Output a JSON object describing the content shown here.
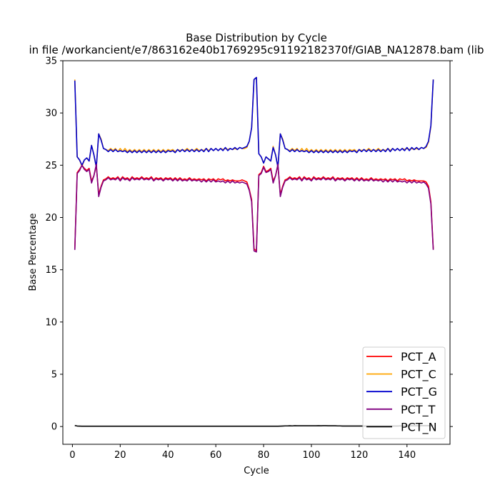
{
  "chart_data": {
    "type": "line",
    "title": "Base Distribution by Cycle",
    "subtitle": "in file /workancient/e7/863162e40b1769295c91192182370f/GIAB_NA12878.bam (lib",
    "xlabel": "Cycle",
    "ylabel": "Base Percentage",
    "xlim": [
      -4,
      158
    ],
    "ylim": [
      -1.7,
      35
    ],
    "xticks": [
      0,
      20,
      40,
      60,
      80,
      100,
      120,
      140
    ],
    "yticks": [
      0,
      5,
      10,
      15,
      20,
      25,
      30,
      35
    ],
    "grid": false,
    "legend_position": "lower-right",
    "x": [
      1,
      2,
      3,
      4,
      5,
      6,
      7,
      8,
      9,
      10,
      11,
      12,
      13,
      14,
      15,
      16,
      17,
      18,
      19,
      20,
      21,
      22,
      23,
      24,
      25,
      26,
      27,
      28,
      29,
      30,
      31,
      32,
      33,
      34,
      35,
      36,
      37,
      38,
      39,
      40,
      41,
      42,
      43,
      44,
      45,
      46,
      47,
      48,
      49,
      50,
      51,
      52,
      53,
      54,
      55,
      56,
      57,
      58,
      59,
      60,
      61,
      62,
      63,
      64,
      65,
      66,
      67,
      68,
      69,
      70,
      71,
      72,
      73,
      74,
      75,
      76,
      77,
      78,
      79,
      80,
      81,
      82,
      83,
      84,
      85,
      86,
      87,
      88,
      89,
      90,
      91,
      92,
      93,
      94,
      95,
      96,
      97,
      98,
      99,
      100,
      101,
      102,
      103,
      104,
      105,
      106,
      107,
      108,
      109,
      110,
      111,
      112,
      113,
      114,
      115,
      116,
      117,
      118,
      119,
      120,
      121,
      122,
      123,
      124,
      125,
      126,
      127,
      128,
      129,
      130,
      131,
      132,
      133,
      134,
      135,
      136,
      137,
      138,
      139,
      140,
      141,
      142,
      143,
      144,
      145,
      146,
      147,
      148,
      149,
      150,
      151
    ],
    "series": [
      {
        "name": "PCT_A",
        "color": "#ff0000",
        "values": [
          17.0,
          24.3,
          24.6,
          25.0,
          24.7,
          24.5,
          24.7,
          23.5,
          24.0,
          25.0,
          22.2,
          23.0,
          23.6,
          23.7,
          23.9,
          23.7,
          23.8,
          23.7,
          23.9,
          23.6,
          23.9,
          23.7,
          23.8,
          23.6,
          23.9,
          23.7,
          23.8,
          23.7,
          23.9,
          23.7,
          23.8,
          23.7,
          23.9,
          23.6,
          23.8,
          23.7,
          23.8,
          23.6,
          23.8,
          23.7,
          23.8,
          23.6,
          23.8,
          23.6,
          23.8,
          23.6,
          23.7,
          23.6,
          23.8,
          23.6,
          23.7,
          23.6,
          23.7,
          23.6,
          23.7,
          23.5,
          23.7,
          23.6,
          23.7,
          23.5,
          23.7,
          23.6,
          23.7,
          23.5,
          23.6,
          23.5,
          23.6,
          23.5,
          23.5,
          23.5,
          23.6,
          23.5,
          23.4,
          22.7,
          21.7,
          17.0,
          16.8,
          24.1,
          24.3,
          24.9,
          24.4,
          24.5,
          24.7,
          23.5,
          24.0,
          25.0,
          22.2,
          23.0,
          23.6,
          23.7,
          23.9,
          23.7,
          23.8,
          23.7,
          23.9,
          23.6,
          23.9,
          23.7,
          23.8,
          23.6,
          23.9,
          23.7,
          23.8,
          23.7,
          23.9,
          23.7,
          23.8,
          23.7,
          23.9,
          23.6,
          23.8,
          23.7,
          23.8,
          23.6,
          23.8,
          23.7,
          23.8,
          23.6,
          23.8,
          23.6,
          23.8,
          23.6,
          23.7,
          23.6,
          23.8,
          23.6,
          23.7,
          23.6,
          23.7,
          23.6,
          23.7,
          23.5,
          23.7,
          23.6,
          23.7,
          23.5,
          23.7,
          23.6,
          23.7,
          23.5,
          23.6,
          23.5,
          23.6,
          23.5,
          23.5,
          23.5,
          23.5,
          23.4,
          23.0,
          21.5,
          17.0
        ]
      },
      {
        "name": "PCT_C",
        "color": "#ffa500",
        "values": [
          33.2,
          25.8,
          25.5,
          24.9,
          25.5,
          25.7,
          25.4,
          26.9,
          26.0,
          24.8,
          28.0,
          27.5,
          26.6,
          26.5,
          26.4,
          26.6,
          26.4,
          26.6,
          26.3,
          26.6,
          26.3,
          26.6,
          26.3,
          26.5,
          26.3,
          26.5,
          26.3,
          26.5,
          26.3,
          26.5,
          26.3,
          26.5,
          26.3,
          26.5,
          26.3,
          26.5,
          26.3,
          26.5,
          26.3,
          26.5,
          26.4,
          26.5,
          26.3,
          26.5,
          26.4,
          26.5,
          26.4,
          26.6,
          26.4,
          26.5,
          26.4,
          26.6,
          26.4,
          26.5,
          26.4,
          26.6,
          26.4,
          26.6,
          26.4,
          26.6,
          26.4,
          26.6,
          26.5,
          26.6,
          26.5,
          26.6,
          26.5,
          26.6,
          26.5,
          26.7,
          26.6,
          26.6,
          26.7,
          27.3,
          28.6,
          33.2,
          33.4,
          26.1,
          25.8,
          25.2,
          25.8,
          25.6,
          25.4,
          26.8,
          26.0,
          24.8,
          28.0,
          27.5,
          26.6,
          26.5,
          26.4,
          26.6,
          26.4,
          26.6,
          26.3,
          26.6,
          26.3,
          26.6,
          26.3,
          26.5,
          26.3,
          26.5,
          26.3,
          26.5,
          26.3,
          26.5,
          26.3,
          26.5,
          26.3,
          26.5,
          26.3,
          26.5,
          26.3,
          26.5,
          26.3,
          26.5,
          26.4,
          26.5,
          26.3,
          26.5,
          26.4,
          26.5,
          26.4,
          26.6,
          26.4,
          26.5,
          26.4,
          26.6,
          26.4,
          26.5,
          26.4,
          26.6,
          26.4,
          26.6,
          26.4,
          26.6,
          26.4,
          26.6,
          26.5,
          26.6,
          26.5,
          26.6,
          26.5,
          26.6,
          26.5,
          26.7,
          26.6,
          26.7,
          27.2,
          28.7,
          33.2
        ]
      },
      {
        "name": "PCT_G",
        "color": "#0000cd",
        "values": [
          33.1,
          25.8,
          25.5,
          25.0,
          25.5,
          25.7,
          25.4,
          26.9,
          26.0,
          24.8,
          28.0,
          27.4,
          26.6,
          26.5,
          26.3,
          26.5,
          26.3,
          26.5,
          26.3,
          26.4,
          26.3,
          26.4,
          26.2,
          26.4,
          26.2,
          26.4,
          26.2,
          26.4,
          26.2,
          26.4,
          26.2,
          26.4,
          26.2,
          26.4,
          26.2,
          26.4,
          26.2,
          26.4,
          26.2,
          26.4,
          26.3,
          26.4,
          26.2,
          26.5,
          26.3,
          26.5,
          26.3,
          26.5,
          26.3,
          26.5,
          26.3,
          26.5,
          26.3,
          26.5,
          26.3,
          26.6,
          26.3,
          26.6,
          26.4,
          26.6,
          26.4,
          26.6,
          26.4,
          26.7,
          26.4,
          26.6,
          26.5,
          26.7,
          26.5,
          26.7,
          26.6,
          26.7,
          26.8,
          27.3,
          28.6,
          33.2,
          33.4,
          26.1,
          25.8,
          25.2,
          25.8,
          25.6,
          25.4,
          26.7,
          26.0,
          24.8,
          28.0,
          27.4,
          26.6,
          26.5,
          26.3,
          26.5,
          26.3,
          26.5,
          26.3,
          26.4,
          26.3,
          26.4,
          26.2,
          26.4,
          26.2,
          26.4,
          26.2,
          26.4,
          26.2,
          26.4,
          26.2,
          26.4,
          26.2,
          26.4,
          26.2,
          26.4,
          26.2,
          26.4,
          26.2,
          26.4,
          26.3,
          26.4,
          26.2,
          26.5,
          26.3,
          26.5,
          26.3,
          26.5,
          26.3,
          26.5,
          26.3,
          26.5,
          26.3,
          26.5,
          26.3,
          26.6,
          26.3,
          26.6,
          26.4,
          26.6,
          26.4,
          26.6,
          26.4,
          26.7,
          26.4,
          26.7,
          26.5,
          26.7,
          26.5,
          26.7,
          26.6,
          26.8,
          27.3,
          28.8,
          33.2
        ]
      },
      {
        "name": "PCT_T",
        "color": "#800080",
        "values": [
          16.9,
          24.2,
          24.5,
          25.0,
          24.6,
          24.4,
          24.6,
          23.3,
          24.0,
          25.1,
          22.0,
          22.9,
          23.5,
          23.6,
          23.8,
          23.6,
          23.7,
          23.6,
          23.8,
          23.5,
          23.8,
          23.6,
          23.7,
          23.5,
          23.8,
          23.6,
          23.7,
          23.6,
          23.8,
          23.6,
          23.7,
          23.6,
          23.8,
          23.5,
          23.7,
          23.6,
          23.7,
          23.5,
          23.7,
          23.6,
          23.7,
          23.5,
          23.7,
          23.5,
          23.7,
          23.5,
          23.6,
          23.5,
          23.7,
          23.5,
          23.6,
          23.5,
          23.6,
          23.4,
          23.6,
          23.4,
          23.6,
          23.4,
          23.6,
          23.4,
          23.5,
          23.4,
          23.5,
          23.3,
          23.5,
          23.3,
          23.5,
          23.3,
          23.4,
          23.3,
          23.4,
          23.3,
          23.2,
          22.6,
          21.5,
          16.8,
          16.7,
          24.0,
          24.2,
          24.8,
          24.3,
          24.4,
          24.6,
          23.3,
          24.0,
          25.1,
          22.0,
          22.9,
          23.5,
          23.6,
          23.8,
          23.6,
          23.7,
          23.6,
          23.8,
          23.5,
          23.8,
          23.6,
          23.7,
          23.5,
          23.8,
          23.6,
          23.7,
          23.6,
          23.8,
          23.6,
          23.7,
          23.6,
          23.8,
          23.5,
          23.7,
          23.6,
          23.7,
          23.5,
          23.7,
          23.6,
          23.7,
          23.5,
          23.7,
          23.5,
          23.7,
          23.5,
          23.6,
          23.5,
          23.7,
          23.5,
          23.6,
          23.5,
          23.6,
          23.4,
          23.6,
          23.4,
          23.6,
          23.4,
          23.6,
          23.4,
          23.5,
          23.4,
          23.5,
          23.3,
          23.5,
          23.3,
          23.5,
          23.3,
          23.4,
          23.3,
          23.4,
          23.2,
          22.8,
          21.3,
          16.9
        ]
      },
      {
        "name": "PCT_N",
        "color": "#000000",
        "values": [
          0.1,
          0.05,
          0.04,
          0.03,
          0.03,
          0.03,
          0.03,
          0.03,
          0.03,
          0.03,
          0.03,
          0.03,
          0.03,
          0.03,
          0.03,
          0.03,
          0.03,
          0.03,
          0.03,
          0.03,
          0.03,
          0.03,
          0.03,
          0.03,
          0.03,
          0.03,
          0.03,
          0.03,
          0.03,
          0.03,
          0.03,
          0.03,
          0.03,
          0.03,
          0.03,
          0.03,
          0.03,
          0.03,
          0.03,
          0.03,
          0.03,
          0.03,
          0.03,
          0.03,
          0.03,
          0.03,
          0.03,
          0.03,
          0.03,
          0.03,
          0.03,
          0.03,
          0.03,
          0.03,
          0.03,
          0.03,
          0.03,
          0.03,
          0.03,
          0.03,
          0.03,
          0.03,
          0.03,
          0.03,
          0.03,
          0.03,
          0.03,
          0.03,
          0.03,
          0.03,
          0.03,
          0.03,
          0.03,
          0.03,
          0.03,
          0.03,
          0.03,
          0.03,
          0.03,
          0.03,
          0.03,
          0.03,
          0.03,
          0.03,
          0.03,
          0.03,
          0.04,
          0.05,
          0.06,
          0.06,
          0.07,
          0.06,
          0.08,
          0.07,
          0.07,
          0.07,
          0.07,
          0.07,
          0.07,
          0.07,
          0.07,
          0.07,
          0.08,
          0.07,
          0.08,
          0.08,
          0.07,
          0.07,
          0.07,
          0.07,
          0.06,
          0.06,
          0.05,
          0.05,
          0.05,
          0.05,
          0.05,
          0.05,
          0.05,
          0.05,
          0.05,
          0.05,
          0.05,
          0.05,
          0.05,
          0.05,
          0.05,
          0.05,
          0.05,
          0.05,
          0.05,
          0.05,
          0.05,
          0.05,
          0.05,
          0.05,
          0.06,
          0.06,
          0.06,
          0.07,
          0.07,
          0.07,
          0.07,
          0.07,
          0.07,
          0.08,
          0.08,
          0.08,
          0.08,
          0.08,
          0.08
        ]
      }
    ]
  }
}
